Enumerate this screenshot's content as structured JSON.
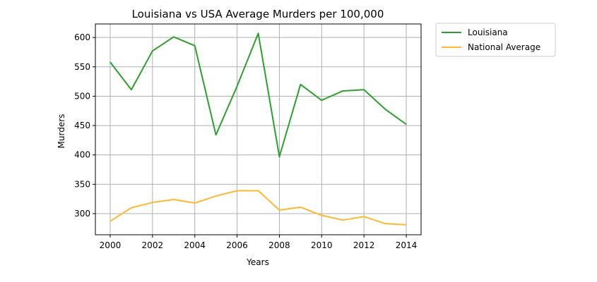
{
  "chart_data": {
    "type": "line",
    "title": "Louisiana vs USA Average Murders per 100,000",
    "xlabel": "Years",
    "ylabel": "Murders",
    "x": [
      2000,
      2001,
      2002,
      2003,
      2004,
      2005,
      2006,
      2007,
      2008,
      2009,
      2010,
      2011,
      2012,
      2013,
      2014
    ],
    "xlim": [
      1999.3,
      2014.7
    ],
    "ylim": [
      264,
      623
    ],
    "xticks": [
      2000,
      2002,
      2004,
      2006,
      2008,
      2010,
      2012,
      2014
    ],
    "yticks": [
      300,
      350,
      400,
      450,
      500,
      550,
      600
    ],
    "grid": true,
    "legend_position": "outside-top-right",
    "series": [
      {
        "name": "Louisiana",
        "color": "#2ca02c",
        "values": [
          558,
          511,
          577,
          601,
          586,
          434,
          517,
          607,
          397,
          520,
          493,
          509,
          511,
          478,
          452
        ]
      },
      {
        "name": "National Average",
        "color": "#ffb732",
        "values": [
          287,
          310,
          319,
          324,
          318,
          330,
          339,
          339,
          306,
          311,
          297,
          289,
          295,
          283,
          281
        ]
      }
    ]
  }
}
